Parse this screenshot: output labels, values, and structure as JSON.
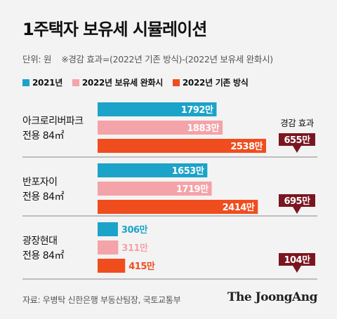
{
  "title": "1주택자 보유세 시뮬레이션",
  "unit": "단위: 원",
  "note": "※경감 효과=(2022년 기존 방식)-(2022년 보유세 완화시)",
  "source": "자료: 우병탁 신한은행 부동산팀장, 국토교통부",
  "brand": "The JoongAng",
  "colors": {
    "s2021": "#1ba3c9",
    "s2022_relief": "#f4a3a8",
    "s2022_existing": "#f04d1e",
    "arrow": "#7a1620",
    "divider": "#888888"
  },
  "chart_data": {
    "type": "bar",
    "orientation": "horizontal",
    "categories": [
      [
        "아크로리버파크",
        "전용 84㎡"
      ],
      [
        "반포자이",
        "전용 84㎡"
      ],
      [
        "광장현대",
        "전용 84㎡"
      ]
    ],
    "series": [
      {
        "name": "2021년",
        "values": [
          1792,
          1653,
          306
        ],
        "labels": [
          "1792만",
          "1653만",
          "306만"
        ]
      },
      {
        "name": "2022년 보유세 완화시",
        "values": [
          1883,
          1719,
          311
        ],
        "labels": [
          "1883만",
          "1719만",
          "311만"
        ]
      },
      {
        "name": "2022년 기존 방식",
        "values": [
          2538,
          2414,
          415
        ],
        "labels": [
          "2538만",
          "2414만",
          "415만"
        ]
      }
    ],
    "reduction_label": "경감 효과",
    "reductions": [
      655,
      695,
      104
    ],
    "reduction_labels": [
      "655만",
      "695만",
      "104만"
    ],
    "xlim": [
      0,
      2538
    ],
    "grid": false
  }
}
